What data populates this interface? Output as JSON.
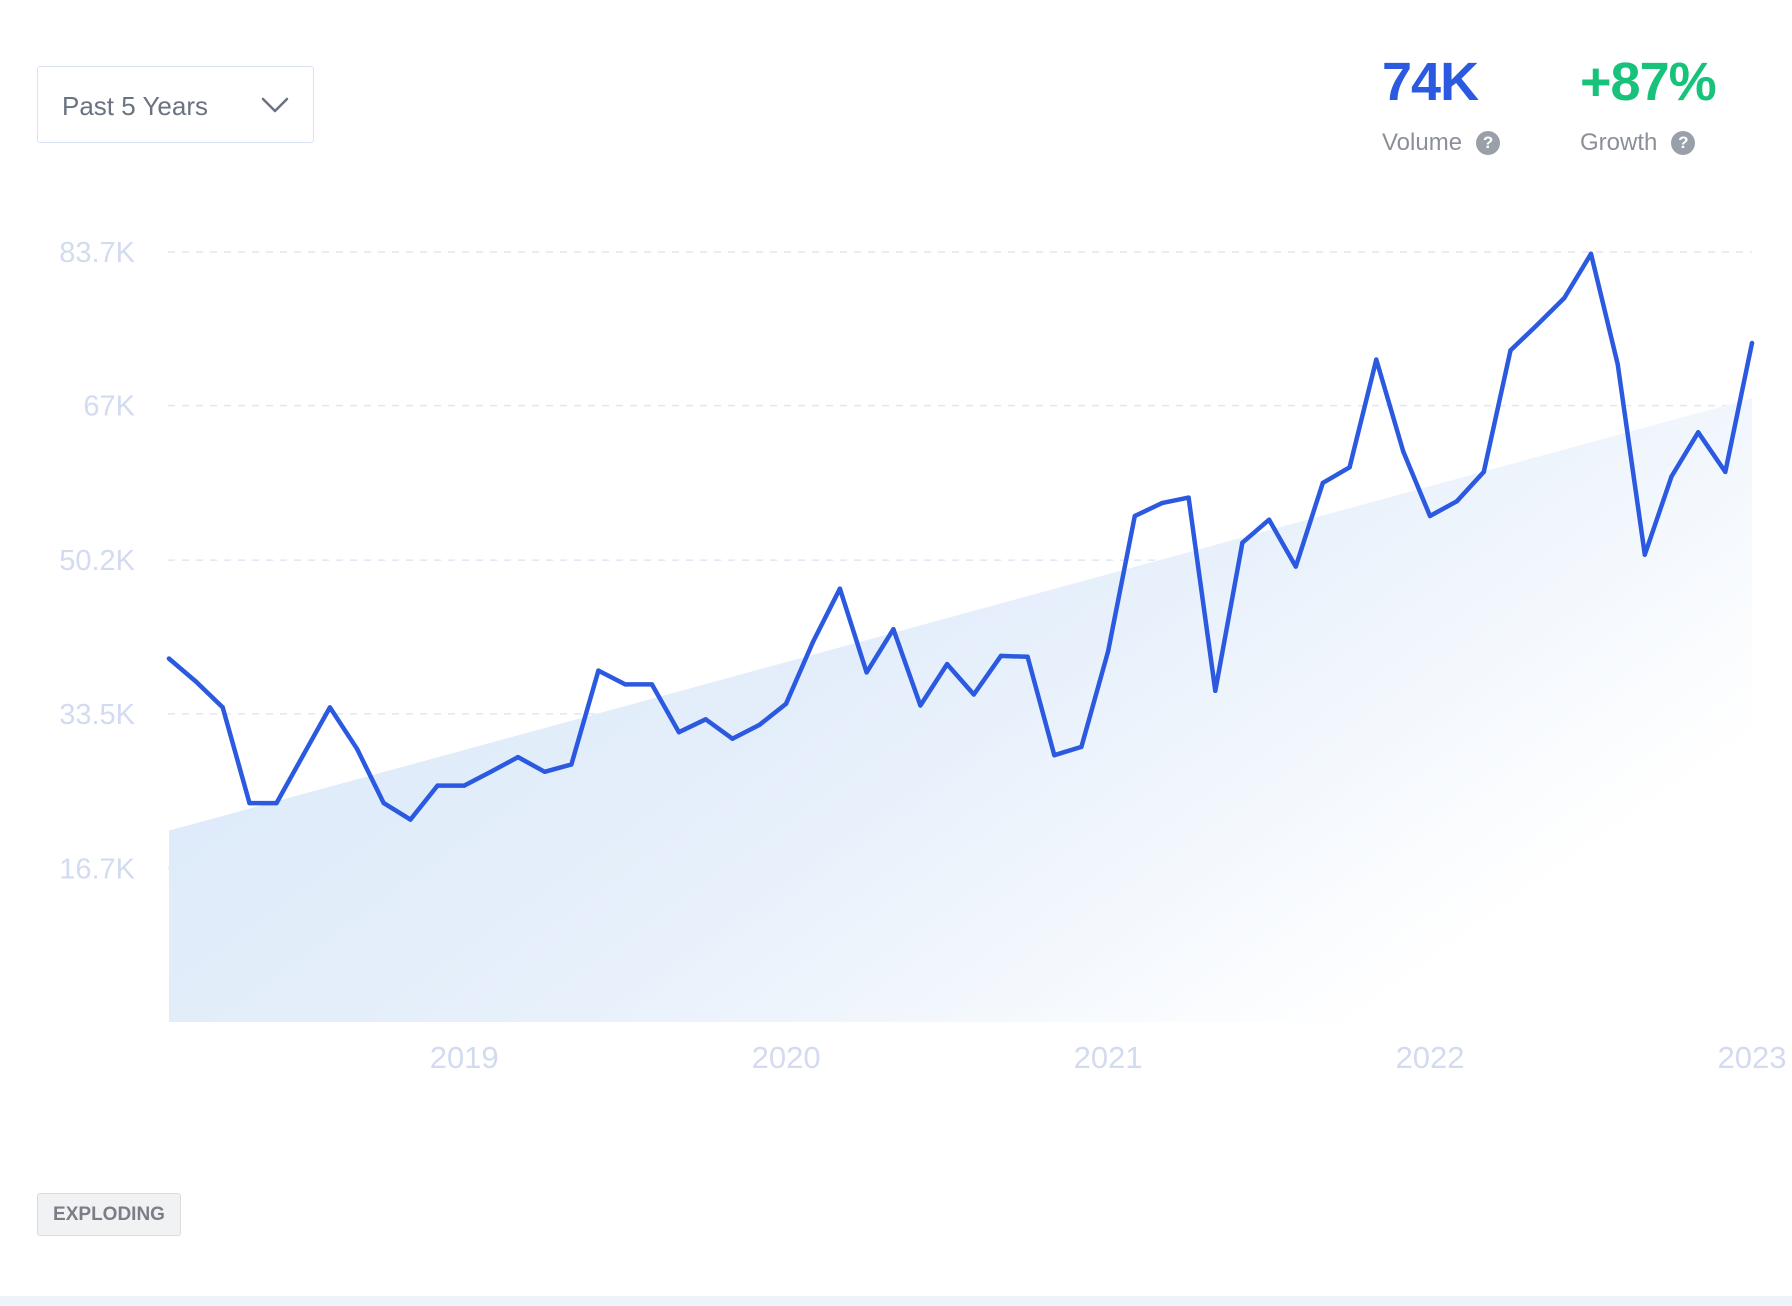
{
  "range_select": {
    "label": "Past 5 Years"
  },
  "metrics": {
    "volume": {
      "value": "74K",
      "label": "Volume"
    },
    "growth": {
      "value": "+87%",
      "label": "Growth"
    },
    "help_glyph": "?"
  },
  "status_badge": "EXPLODING",
  "colors": {
    "line": "#2b59e0",
    "volume": "#2b59e0",
    "growth": "#17c27a",
    "area_fill": "#d6e6f8",
    "gridline": "#e1e7f2",
    "tick_text": "#d2dbef"
  },
  "chart_data": {
    "type": "line",
    "x_ticks": [
      "2019",
      "2020",
      "2021",
      "2022",
      "2023"
    ],
    "y_ticks": [
      "83.7K",
      "67K",
      "50.2K",
      "33.5K",
      "16.7K"
    ],
    "y_tick_values": [
      83700,
      67000,
      50200,
      33500,
      16700
    ],
    "ylim": [
      0,
      83700
    ],
    "xlim": [
      2018.58,
      2023.5
    ],
    "grid": true,
    "series": [
      {
        "values": [
          [
            2018.583,
            39500
          ],
          [
            2018.667,
            37000
          ],
          [
            2018.75,
            34200
          ],
          [
            2018.833,
            23800
          ],
          [
            2018.917,
            23800
          ],
          [
            2019.0,
            29000
          ],
          [
            2019.083,
            34200
          ],
          [
            2019.167,
            29700
          ],
          [
            2019.25,
            23800
          ],
          [
            2019.333,
            22000
          ],
          [
            2019.417,
            25700
          ],
          [
            2019.5,
            25700
          ],
          [
            2019.583,
            27200
          ],
          [
            2019.667,
            28800
          ],
          [
            2019.75,
            27200
          ],
          [
            2019.833,
            28000
          ],
          [
            2019.917,
            38200
          ],
          [
            2020.0,
            36700
          ],
          [
            2020.083,
            36700
          ],
          [
            2020.167,
            31500
          ],
          [
            2020.25,
            32900
          ],
          [
            2020.333,
            30800
          ],
          [
            2020.417,
            32300
          ],
          [
            2020.5,
            34600
          ],
          [
            2020.583,
            41300
          ],
          [
            2020.667,
            47100
          ],
          [
            2020.75,
            38000
          ],
          [
            2020.833,
            42700
          ],
          [
            2020.917,
            34400
          ],
          [
            2021.0,
            38900
          ],
          [
            2021.083,
            35600
          ],
          [
            2021.167,
            39800
          ],
          [
            2021.25,
            39700
          ],
          [
            2021.333,
            29000
          ],
          [
            2021.417,
            29900
          ],
          [
            2021.5,
            40300
          ],
          [
            2021.583,
            55000
          ],
          [
            2021.667,
            56400
          ],
          [
            2021.75,
            57000
          ],
          [
            2021.833,
            36000
          ],
          [
            2021.917,
            52100
          ],
          [
            2022.0,
            54600
          ],
          [
            2022.083,
            49500
          ],
          [
            2022.167,
            58600
          ],
          [
            2022.25,
            60300
          ],
          [
            2022.333,
            72000
          ],
          [
            2022.417,
            62000
          ],
          [
            2022.5,
            55000
          ],
          [
            2022.583,
            56600
          ],
          [
            2022.667,
            59800
          ],
          [
            2022.75,
            73000
          ],
          [
            2022.833,
            75800
          ],
          [
            2022.917,
            78700
          ],
          [
            2023.0,
            83500
          ],
          [
            2023.083,
            71500
          ],
          [
            2023.167,
            50800
          ],
          [
            2023.25,
            59300
          ],
          [
            2023.333,
            64100
          ],
          [
            2023.417,
            59800
          ],
          [
            2023.5,
            73800
          ]
        ]
      }
    ],
    "trend": [
      [
        2018.583,
        20800
      ],
      [
        2023.5,
        67800
      ]
    ]
  }
}
